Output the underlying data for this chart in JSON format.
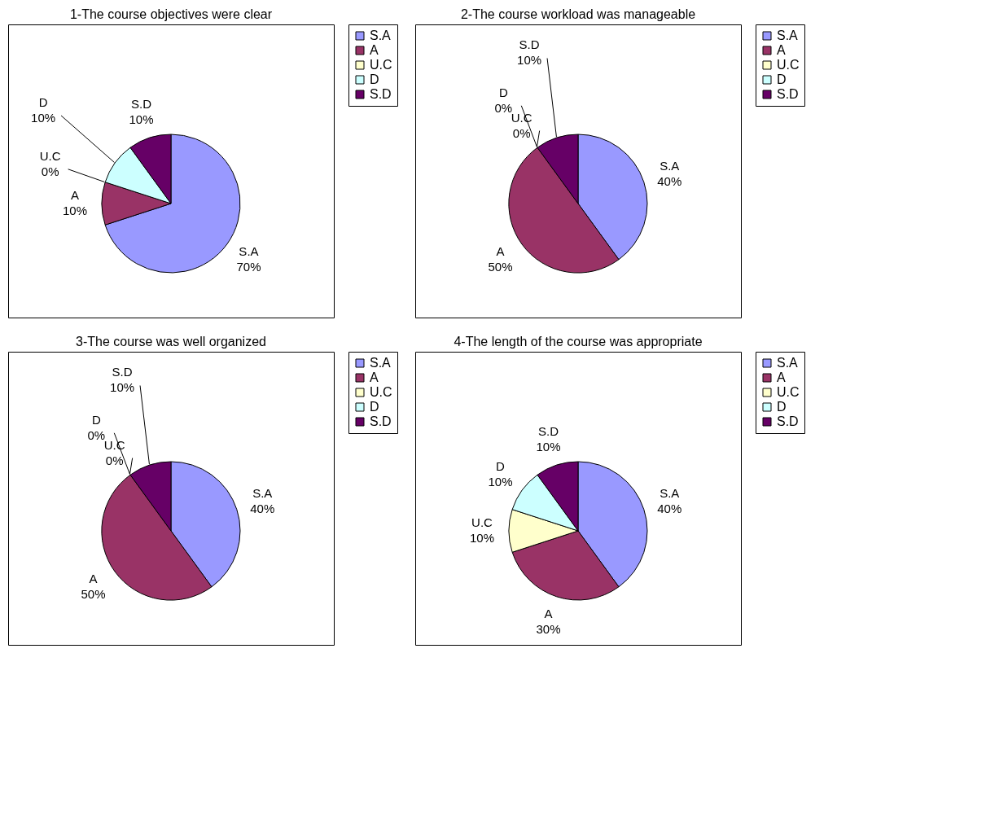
{
  "chart_data": [
    {
      "type": "pie",
      "title": "1-The course objectives were clear",
      "categories": [
        "S.A",
        "A",
        "U.C",
        "D",
        "S.D"
      ],
      "values": [
        70,
        10,
        0,
        10,
        10
      ],
      "value_labels": [
        "70%",
        "10%",
        "0%",
        "10%",
        "10%"
      ],
      "colors": [
        "#9999ff",
        "#993366",
        "#ffffcc",
        "#ccffff",
        "#660066"
      ],
      "legend": "right"
    },
    {
      "type": "pie",
      "title": "2-The course workload was manageable",
      "categories": [
        "S.A",
        "A",
        "U.C",
        "D",
        "S.D"
      ],
      "values": [
        40,
        50,
        0,
        0,
        10
      ],
      "value_labels": [
        "40%",
        "50%",
        "0%",
        "0%",
        "10%"
      ],
      "colors": [
        "#9999ff",
        "#993366",
        "#ffffcc",
        "#ccffff",
        "#660066"
      ],
      "legend": "right"
    },
    {
      "type": "pie",
      "title": "3-The course was well organized",
      "categories": [
        "S.A",
        "A",
        "U.C",
        "D",
        "S.D"
      ],
      "values": [
        40,
        50,
        0,
        0,
        10
      ],
      "value_labels": [
        "40%",
        "50%",
        "0%",
        "0%",
        "10%"
      ],
      "colors": [
        "#9999ff",
        "#993366",
        "#ffffcc",
        "#ccffff",
        "#660066"
      ],
      "legend": "right"
    },
    {
      "type": "pie",
      "title": "4-The length of the course was appropriate",
      "categories": [
        "S.A",
        "A",
        "U.C",
        "D",
        "S.D"
      ],
      "values": [
        40,
        30,
        10,
        10,
        10
      ],
      "value_labels": [
        "40%",
        "30%",
        "10%",
        "10%",
        "10%"
      ],
      "colors": [
        "#9999ff",
        "#993366",
        "#ffffcc",
        "#ccffff",
        "#660066"
      ],
      "legend": "right"
    }
  ]
}
